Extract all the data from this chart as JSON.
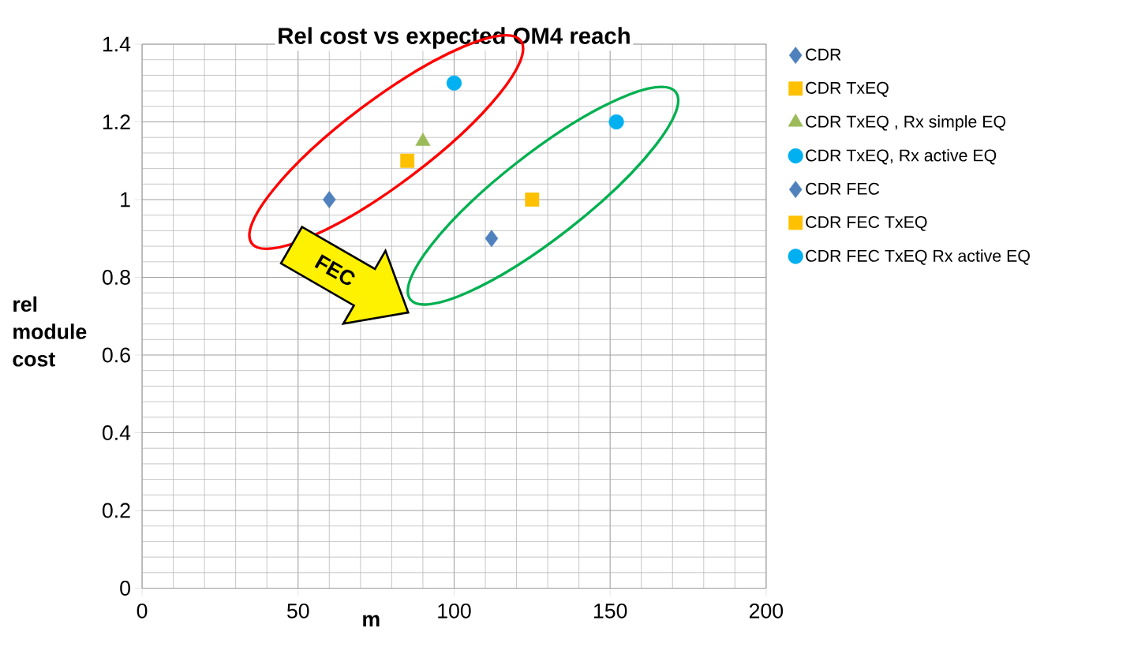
{
  "chart_data": {
    "type": "scatter",
    "title": "Rel cost vs expected OM4 reach",
    "xlabel": "m",
    "ylabel": "rel module cost",
    "annotations": [
      "FEC"
    ],
    "xlim": [
      0,
      200
    ],
    "xticks": [
      0,
      50,
      100,
      150,
      200
    ],
    "ylim": [
      0,
      1.4
    ],
    "yticks": [
      0,
      0.2,
      0.4,
      0.6,
      0.8,
      1,
      1.2,
      1.4
    ],
    "grid": true,
    "legend": "right",
    "series": [
      {
        "name": "CDR",
        "color": "#4f81bd",
        "marker": "diamond",
        "x": [
          60
        ],
        "values": [
          1.0
        ]
      },
      {
        "name": "CDR TxEQ",
        "color": "#ffc000",
        "marker": "square",
        "x": [
          85
        ],
        "values": [
          1.1
        ]
      },
      {
        "name": "CDR TxEQ , Rx simple EQ",
        "color": "#9bbb59",
        "marker": "triangle",
        "x": [
          90
        ],
        "values": [
          1.15
        ]
      },
      {
        "name": "CDR TxEQ, Rx active EQ",
        "color": "#00b0f0",
        "marker": "circle",
        "x": [
          100
        ],
        "values": [
          1.3
        ]
      },
      {
        "name": "CDR FEC",
        "color": "#4f81bd",
        "marker": "diamond",
        "x": [
          112
        ],
        "values": [
          0.9
        ]
      },
      {
        "name": "CDR FEC TxEQ",
        "color": "#ffc000",
        "marker": "square",
        "x": [
          125
        ],
        "values": [
          1.0
        ]
      },
      {
        "name": "CDR FEC TxEQ  Rx active EQ",
        "color": "#00b0f0",
        "marker": "circle",
        "x": [
          152
        ],
        "values": [
          1.2
        ]
      }
    ]
  }
}
